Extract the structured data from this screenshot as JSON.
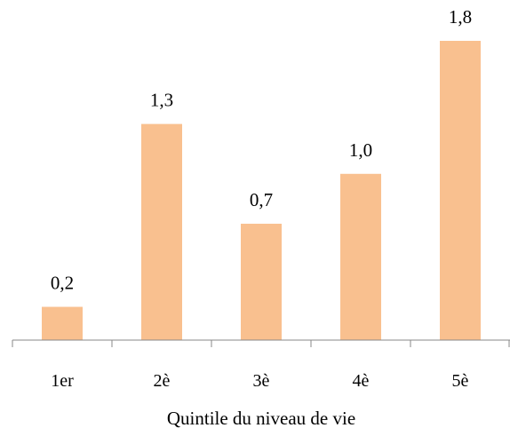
{
  "chart_data": {
    "type": "bar",
    "categories": [
      "1er",
      "2è",
      "3è",
      "4è",
      "5è"
    ],
    "values": [
      0.2,
      1.3,
      0.7,
      1.0,
      1.8
    ],
    "value_labels": [
      "0,2",
      "1,3",
      "0,7",
      "1,0",
      "1,8"
    ],
    "title": "",
    "xlabel": "Quintile du niveau de vie",
    "ylabel": "",
    "ylim": [
      0,
      1.8
    ],
    "grid": false,
    "legend": "none",
    "bar_color": "#f9c08f",
    "axis_color": "#888888"
  }
}
